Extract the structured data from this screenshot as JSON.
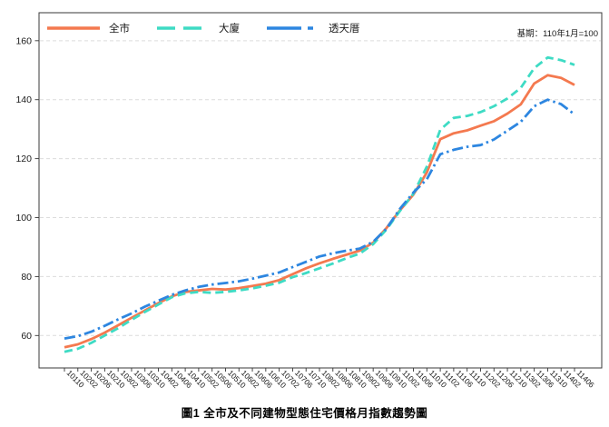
{
  "title": "圖1 全市及不同建物型態住宅價格月指數趨勢圖",
  "note": "基期：110年1月=100",
  "chart_data": {
    "type": "line",
    "title": "圖1 全市及不同建物型態住宅價格月指數趨勢圖",
    "annotation": "基期：110年1月=100",
    "xlabel": "",
    "ylabel": "",
    "ylim": [
      49,
      169.5
    ],
    "yticks": [
      60,
      80,
      100,
      120,
      140,
      160
    ],
    "grid": true,
    "legend_position": "top-left",
    "categories": [
      "10110",
      "10202",
      "10206",
      "10210",
      "10302",
      "10306",
      "10310",
      "10402",
      "10406",
      "10410",
      "10502",
      "10506",
      "10510",
      "10602",
      "10606",
      "10610",
      "10702",
      "10706",
      "10710",
      "10802",
      "10806",
      "10810",
      "10902",
      "10906",
      "10910",
      "11002",
      "11006",
      "11010",
      "11102",
      "11106",
      "11110",
      "11202",
      "11206",
      "11210",
      "11302",
      "11306",
      "11310",
      "11402",
      "11406"
    ],
    "series": [
      {
        "name": "全市",
        "color": "#F4794F",
        "style": "solid",
        "values": [
          56.0,
          57.0,
          58.8,
          61.0,
          63.5,
          66.0,
          68.5,
          71.0,
          73.3,
          74.8,
          75.3,
          75.8,
          75.6,
          76.1,
          76.8,
          77.6,
          78.8,
          80.8,
          82.8,
          84.5,
          86.0,
          87.4,
          88.8,
          91.5,
          96.5,
          102.5,
          107.8,
          115.3,
          126.6,
          128.6,
          129.6,
          131.2,
          132.7,
          135.3,
          138.4,
          145.5,
          148.3,
          147.4,
          145.0
        ]
      },
      {
        "name": "大廈",
        "color": "#3EDBC4",
        "style": "dashed",
        "values": [
          54.5,
          55.5,
          57.5,
          60.0,
          62.5,
          65.3,
          68.0,
          70.5,
          73.0,
          74.3,
          74.8,
          74.5,
          74.8,
          75.3,
          76.0,
          76.9,
          77.9,
          79.8,
          81.2,
          82.8,
          84.4,
          86.2,
          87.8,
          91.0,
          96.0,
          102.3,
          108.1,
          117.3,
          129.8,
          133.8,
          134.5,
          135.8,
          137.8,
          140.4,
          144.0,
          150.7,
          154.3,
          153.4,
          151.8
        ]
      },
      {
        "name": "透天厝",
        "color": "#2D86E0",
        "style": "dashdot",
        "values": [
          59.0,
          59.8,
          61.3,
          63.3,
          65.5,
          67.5,
          69.8,
          71.8,
          73.8,
          75.3,
          76.5,
          77.3,
          77.8,
          78.4,
          79.3,
          80.3,
          81.4,
          83.2,
          85.0,
          86.8,
          87.9,
          88.8,
          89.5,
          91.8,
          96.3,
          103.0,
          108.5,
          113.0,
          121.5,
          123.0,
          124.0,
          124.6,
          126.5,
          129.5,
          132.5,
          137.8,
          140.0,
          138.5,
          135.0
        ]
      }
    ]
  }
}
